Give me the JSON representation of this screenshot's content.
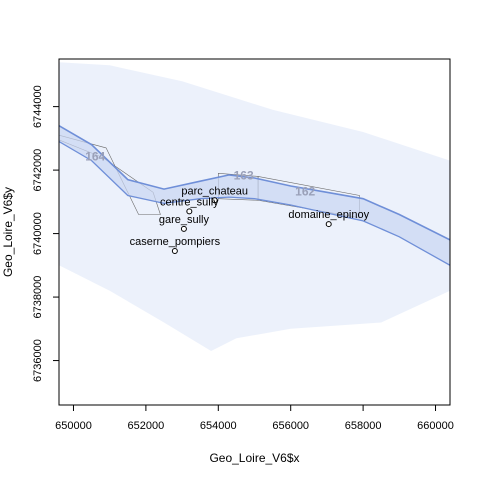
{
  "chart_data": {
    "type": "scatter",
    "xlabel": "Geo_Loire_V6$x",
    "ylabel": "Geo_Loire_V6$y",
    "xlim": [
      649600,
      660400
    ],
    "ylim": [
      6734600,
      6745500
    ],
    "x_ticks": [
      "650000",
      "652000",
      "654000",
      "656000",
      "658000",
      "660000"
    ],
    "y_ticks": [
      "6736000",
      "6738000",
      "6740000",
      "6742000",
      "6744000"
    ],
    "x_tick_values": [
      650000,
      652000,
      654000,
      656000,
      658000,
      660000
    ],
    "y_tick_values": [
      6736000,
      6738000,
      6740000,
      6742000,
      6744000
    ],
    "points": [
      {
        "label": "parc_chateau",
        "x": 653900,
        "y": 6741050
      },
      {
        "label": "centre_sully",
        "x": 653200,
        "y": 6740700
      },
      {
        "label": "gare_sully",
        "x": 653050,
        "y": 6740150
      },
      {
        "label": "caserne_pompiers",
        "x": 652800,
        "y": 6739450
      },
      {
        "label": "domaine_epinoy",
        "x": 657050,
        "y": 6740300
      }
    ],
    "river_line": [
      [
        649600,
        6743400
      ],
      [
        650500,
        6742800
      ],
      [
        651500,
        6741700
      ],
      [
        652500,
        6741400
      ],
      [
        653500,
        6741650
      ],
      [
        654300,
        6741850
      ],
      [
        655000,
        6741750
      ],
      [
        656000,
        6741500
      ],
      [
        657000,
        6741300
      ],
      [
        658000,
        6741100
      ],
      [
        659000,
        6740600
      ],
      [
        660400,
        6739800
      ]
    ],
    "river_line_south": [
      [
        649600,
        6742900
      ],
      [
        650500,
        6742300
      ],
      [
        651500,
        6741200
      ],
      [
        652500,
        6740950
      ],
      [
        653500,
        6741100
      ],
      [
        654300,
        6741150
      ],
      [
        655000,
        6741100
      ],
      [
        656000,
        6740900
      ],
      [
        657000,
        6740650
      ],
      [
        658000,
        6740400
      ],
      [
        659000,
        6739900
      ],
      [
        660400,
        6739000
      ]
    ],
    "zones": [
      {
        "label": "164",
        "x": 650600,
        "y": 6742300
      },
      {
        "label": "163",
        "x": 654700,
        "y": 6741700
      },
      {
        "label": "162",
        "x": 656400,
        "y": 6741200
      }
    ],
    "grid": false,
    "legend": "none"
  },
  "colors": {
    "river": "#6f8fd8",
    "river_fill": "#c9d6f2",
    "halo": "#e9effa",
    "zone_outline": "#6b6b6b",
    "point": "#000000"
  }
}
